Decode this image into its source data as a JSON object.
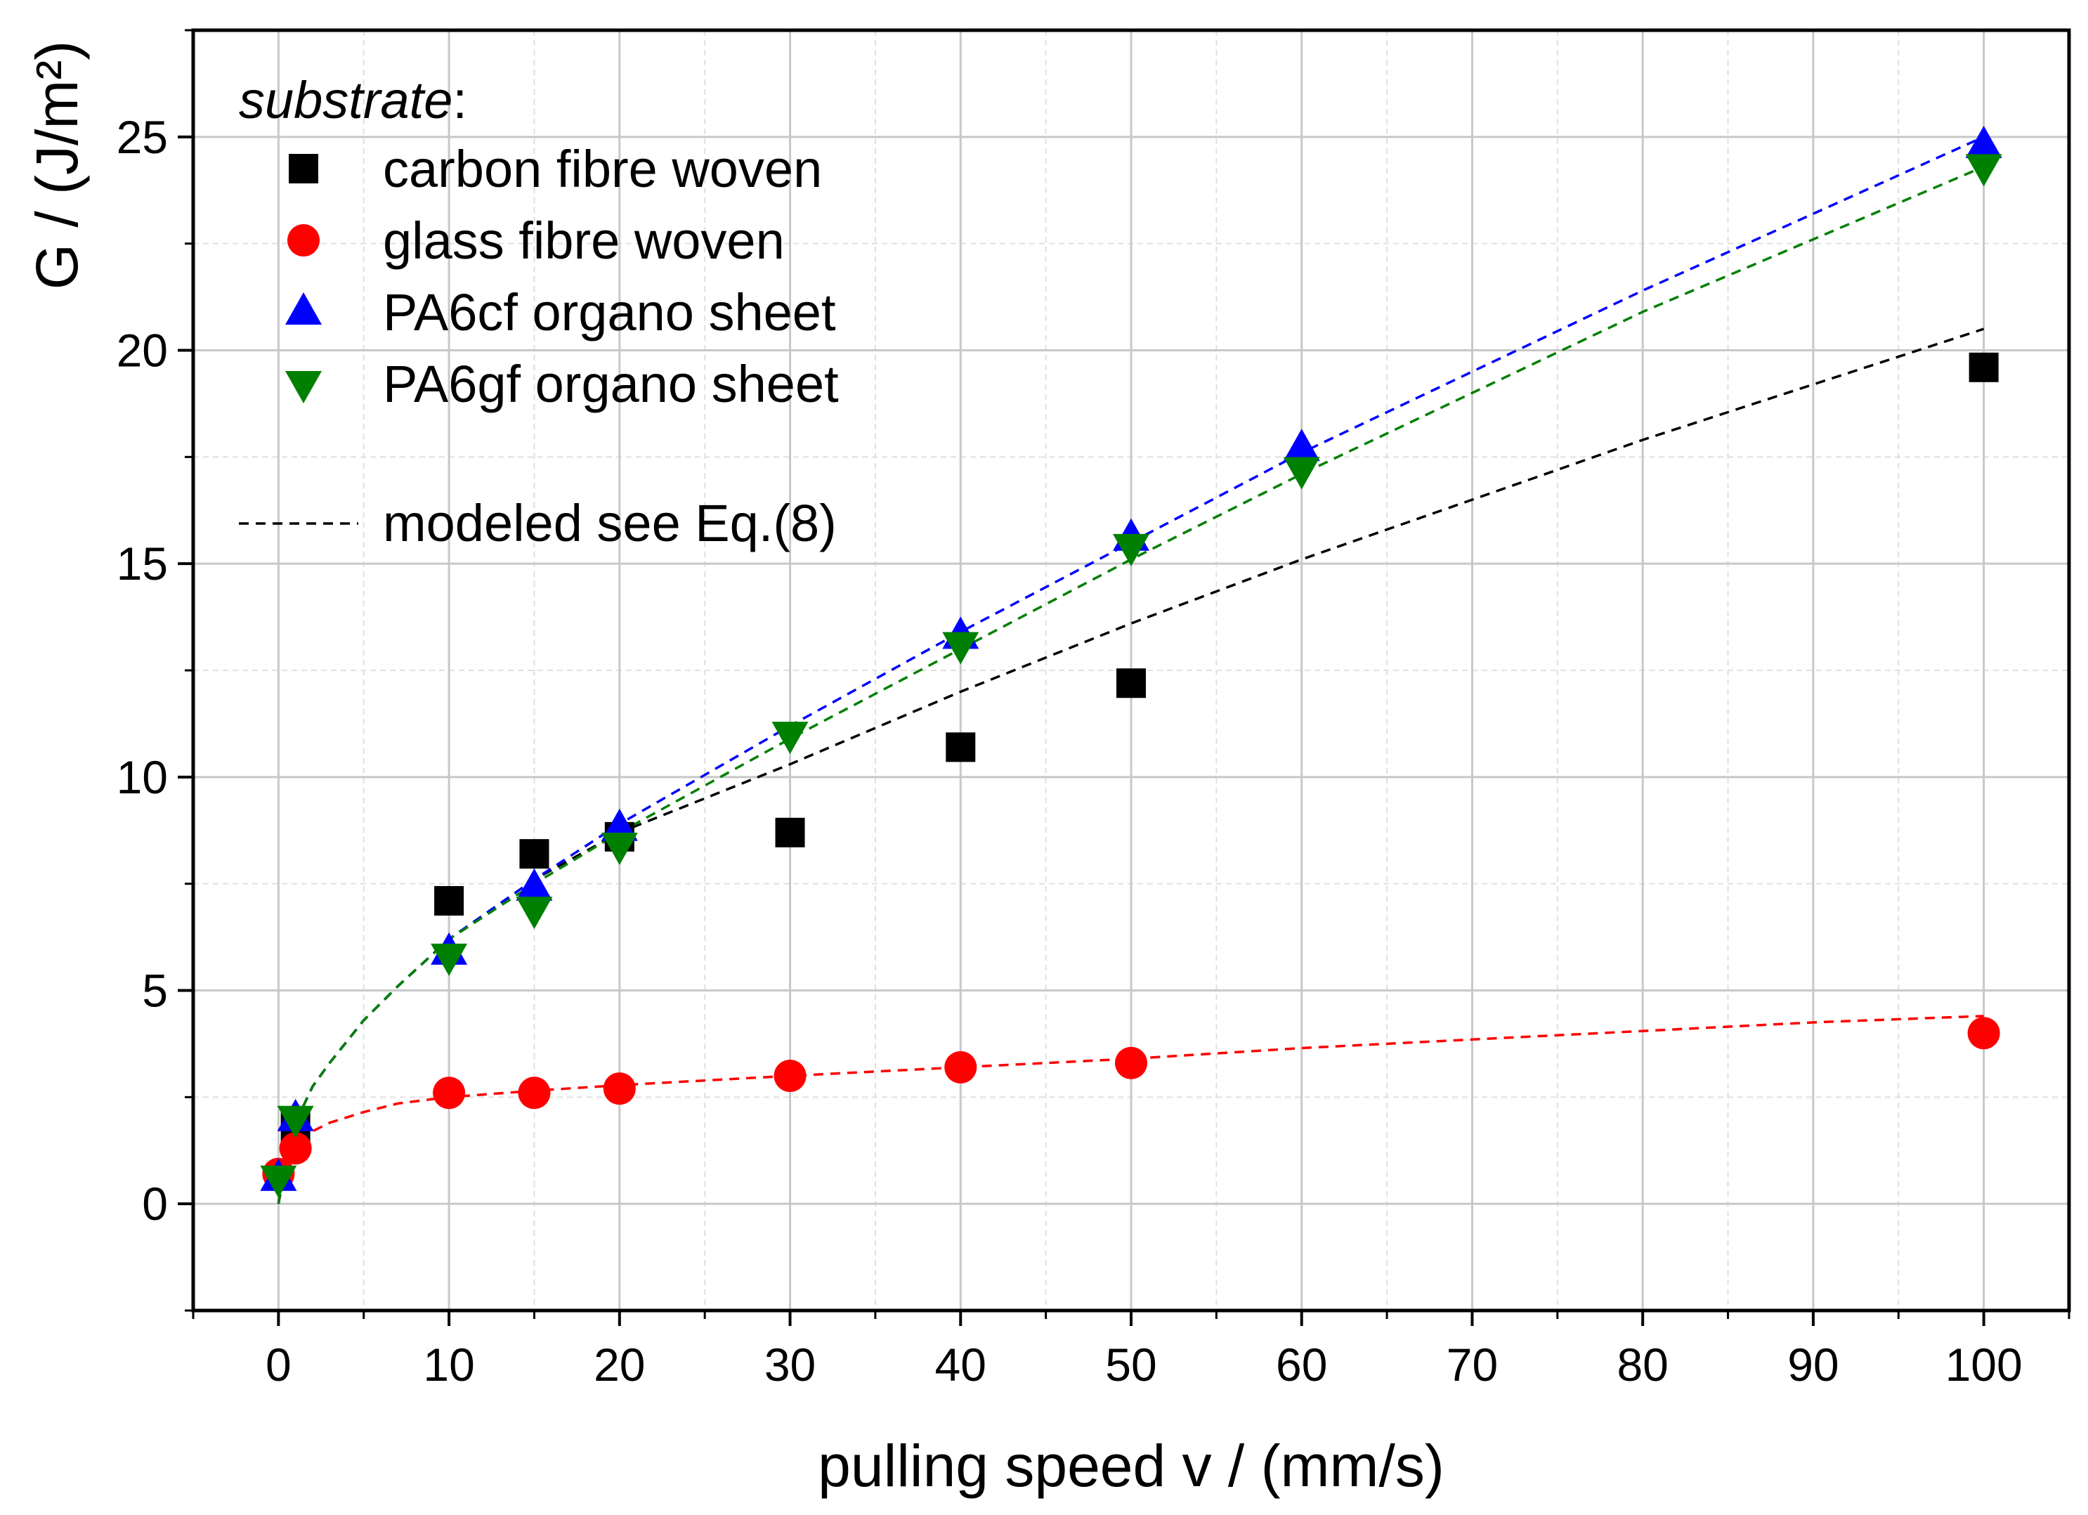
{
  "chart_data": {
    "type": "scatter",
    "title": "",
    "xlabel": "pulling speed v / (mm/s)",
    "ylabel": "G / (J/m²)",
    "xlim": [
      -5,
      105
    ],
    "ylim": [
      -2.5,
      27.5
    ],
    "xticks": [
      0,
      10,
      20,
      30,
      40,
      50,
      60,
      70,
      80,
      90,
      100
    ],
    "yticks": [
      0,
      5,
      10,
      15,
      20,
      25
    ],
    "grid": true,
    "legend": {
      "title": "substrate",
      "title_suffix": ":",
      "position": "top-left",
      "model_label": "modeled see Eq.(8)"
    },
    "series": [
      {
        "name": "carbon fibre woven",
        "marker": "square",
        "color": "#000000",
        "points": [
          [
            1,
            1.8
          ],
          [
            10,
            7.1
          ],
          [
            15,
            8.2
          ],
          [
            20,
            8.6
          ],
          [
            30,
            8.7
          ],
          [
            40,
            10.7
          ],
          [
            50,
            12.2
          ],
          [
            100,
            19.6
          ]
        ]
      },
      {
        "name": "glass fibre woven",
        "marker": "circle",
        "color": "#ff0000",
        "points": [
          [
            0,
            0.7
          ],
          [
            1,
            1.3
          ],
          [
            10,
            2.6
          ],
          [
            15,
            2.6
          ],
          [
            20,
            2.7
          ],
          [
            30,
            3.0
          ],
          [
            40,
            3.2
          ],
          [
            50,
            3.3
          ],
          [
            100,
            4.0
          ]
        ]
      },
      {
        "name": "PA6cf organo sheet",
        "marker": "triangle-up",
        "color": "#0000ff",
        "points": [
          [
            0,
            0.6
          ],
          [
            1,
            2.0
          ],
          [
            10,
            5.9
          ],
          [
            15,
            7.4
          ],
          [
            20,
            8.8
          ],
          [
            40,
            13.3
          ],
          [
            50,
            15.6
          ],
          [
            60,
            17.7
          ],
          [
            100,
            24.8
          ]
        ]
      },
      {
        "name": "PA6gf organo sheet",
        "marker": "triangle-down",
        "color": "#008000",
        "points": [
          [
            0,
            0.6
          ],
          [
            1,
            2.0
          ],
          [
            10,
            5.8
          ],
          [
            15,
            6.9
          ],
          [
            20,
            8.4
          ],
          [
            30,
            11.0
          ],
          [
            40,
            13.1
          ],
          [
            50,
            15.4
          ],
          [
            60,
            17.2
          ],
          [
            100,
            24.3
          ]
        ]
      }
    ],
    "model_curves": [
      {
        "name": "carbon fibre woven model",
        "color": "#000000",
        "points": [
          [
            0,
            0
          ],
          [
            0.5,
            1.3
          ],
          [
            1,
            1.9
          ],
          [
            2,
            2.75
          ],
          [
            3,
            3.3
          ],
          [
            5,
            4.3
          ],
          [
            7,
            5.1
          ],
          [
            10,
            6.2
          ],
          [
            15,
            7.6
          ],
          [
            20,
            8.7
          ],
          [
            30,
            10.3
          ],
          [
            40,
            12.0
          ],
          [
            50,
            13.6
          ],
          [
            60,
            15.1
          ],
          [
            70,
            16.5
          ],
          [
            80,
            17.9
          ],
          [
            90,
            19.2
          ],
          [
            100,
            20.5
          ]
        ]
      },
      {
        "name": "glass fibre woven model",
        "color": "#ff0000",
        "points": [
          [
            0,
            0
          ],
          [
            0.5,
            1.0
          ],
          [
            1,
            1.35
          ],
          [
            2,
            1.7
          ],
          [
            3,
            1.9
          ],
          [
            5,
            2.15
          ],
          [
            7,
            2.35
          ],
          [
            10,
            2.5
          ],
          [
            15,
            2.65
          ],
          [
            20,
            2.78
          ],
          [
            30,
            3.0
          ],
          [
            40,
            3.2
          ],
          [
            50,
            3.4
          ],
          [
            60,
            3.65
          ],
          [
            70,
            3.85
          ],
          [
            80,
            4.05
          ],
          [
            90,
            4.25
          ],
          [
            100,
            4.4
          ]
        ]
      },
      {
        "name": "PA6cf organo sheet model",
        "color": "#0000ff",
        "points": [
          [
            0,
            0
          ],
          [
            0.5,
            1.3
          ],
          [
            1,
            1.9
          ],
          [
            2,
            2.75
          ],
          [
            3,
            3.3
          ],
          [
            5,
            4.3
          ],
          [
            7,
            5.1
          ],
          [
            10,
            6.2
          ],
          [
            15,
            7.6
          ],
          [
            20,
            8.9
          ],
          [
            30,
            11.2
          ],
          [
            40,
            13.4
          ],
          [
            50,
            15.5
          ],
          [
            60,
            17.6
          ],
          [
            70,
            19.5
          ],
          [
            80,
            21.4
          ],
          [
            90,
            23.2
          ],
          [
            100,
            25.0
          ]
        ]
      },
      {
        "name": "PA6gf organo sheet model",
        "color": "#008000",
        "points": [
          [
            0,
            0
          ],
          [
            0.5,
            1.3
          ],
          [
            1,
            1.9
          ],
          [
            2,
            2.75
          ],
          [
            3,
            3.3
          ],
          [
            5,
            4.3
          ],
          [
            7,
            5.1
          ],
          [
            10,
            6.2
          ],
          [
            15,
            7.5
          ],
          [
            20,
            8.7
          ],
          [
            30,
            10.9
          ],
          [
            40,
            13.0
          ],
          [
            50,
            15.1
          ],
          [
            60,
            17.1
          ],
          [
            70,
            19.0
          ],
          [
            80,
            20.9
          ],
          [
            90,
            22.6
          ],
          [
            100,
            24.3
          ]
        ]
      }
    ]
  }
}
